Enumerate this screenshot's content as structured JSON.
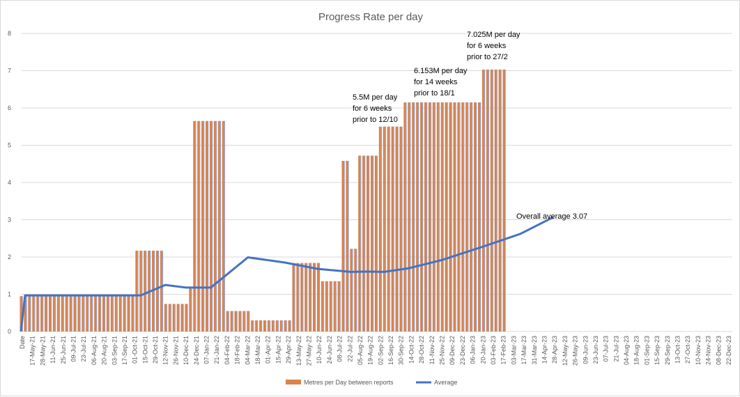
{
  "chart_data": {
    "type": "bar",
    "title": "Progress Rate per day",
    "xlabel": "",
    "ylabel": "",
    "ylim": [
      0,
      8
    ],
    "yticks": [
      "0",
      "1",
      "2",
      "3",
      "4",
      "5",
      "6",
      "7",
      "8"
    ],
    "x_labels": [
      "Date",
      "17-May-21",
      "28-May-21",
      "11-Jun-21",
      "25-Jun-21",
      "09-Jul-21",
      "23-Jul-21",
      "06-Aug-21",
      "20-Aug-21",
      "03-Sep-21",
      "17-Sep-21",
      "01-Oct-21",
      "15-Oct-21",
      "29-Oct-21",
      "12-Nov-21",
      "26-Nov-21",
      "10-Dec-21",
      "24-Dec-21",
      "07-Jan-22",
      "21-Jan-22",
      "04-Feb-22",
      "18-Feb-22",
      "04-Mar-22",
      "18-Mar-22",
      "01-Apr-22",
      "15-Apr-22",
      "29-Apr-22",
      "13-May-22",
      "27-May-22",
      "10-Jun-22",
      "24-Jun-22",
      "08-Jul-22",
      "22-Jul-22",
      "05-Aug-22",
      "19-Aug-22",
      "02-Sep-22",
      "16-Sep-22",
      "30-Sep-22",
      "14-Oct-22",
      "28-Oct-22",
      "11-Nov-22",
      "25-Nov-22",
      "09-Dec-22",
      "23-Dec-22",
      "06-Jan-23",
      "20-Jan-23",
      "03-Feb-23",
      "17-Feb-23",
      "03-Mar-23",
      "17-Mar-23",
      "31-Mar-23",
      "14-Apr-23",
      "28-Apr-23",
      "12-May-23",
      "26-May-23",
      "09-Jun-23",
      "23-Jun-23",
      "07-Jul-23",
      "21-Jul-23",
      "04-Aug-23",
      "18-Aug-23",
      "01-Sep-23",
      "15-Sep-23",
      "29-Sep-23",
      "13-Oct-23",
      "27-Oct-23",
      "10-Nov-23",
      "24-Nov-23",
      "08-Dec-23",
      "22-Dec-23"
    ],
    "series": [
      {
        "name": "Metres per Day between reports",
        "type": "bar",
        "color": "#d9824b",
        "values": [
          0.95,
          0.95,
          0.95,
          0.95,
          0.95,
          0.95,
          0.95,
          0.95,
          0.95,
          0.95,
          0.95,
          0.95,
          0.95,
          0.95,
          0.95,
          0.95,
          0.95,
          0.95,
          0.95,
          0.95,
          0.95,
          0.95,
          0.95,
          0.95,
          0.95,
          0.95,
          0.95,
          0.95,
          2.17,
          2.17,
          2.17,
          2.17,
          2.17,
          2.17,
          2.17,
          0.74,
          0.74,
          0.74,
          0.74,
          0.74,
          0.74,
          1.17,
          5.65,
          5.65,
          5.65,
          5.65,
          5.65,
          5.65,
          5.65,
          5.65,
          0.55,
          0.55,
          0.55,
          0.55,
          0.55,
          0.55,
          0.3,
          0.3,
          0.3,
          0.3,
          0.3,
          0.3,
          0.3,
          0.3,
          0.3,
          0.3,
          1.84,
          1.84,
          1.84,
          1.84,
          1.84,
          1.84,
          1.84,
          1.35,
          1.35,
          1.35,
          1.35,
          1.35,
          4.58,
          4.58,
          2.22,
          2.22,
          4.72,
          4.72,
          4.72,
          4.72,
          4.72,
          5.5,
          5.5,
          5.5,
          5.5,
          5.5,
          5.5,
          6.15,
          6.15,
          6.15,
          6.15,
          6.15,
          6.15,
          6.15,
          6.15,
          6.15,
          6.15,
          6.15,
          6.15,
          6.15,
          6.15,
          6.15,
          6.15,
          6.15,
          6.15,
          6.15,
          7.03,
          7.03,
          7.03,
          7.03,
          7.03,
          7.03
        ]
      },
      {
        "name": "Average",
        "type": "line",
        "color": "#4472c4",
        "x": [
          0,
          1,
          12,
          22,
          29,
          35,
          40,
          46,
          55,
          64,
          72,
          80,
          84,
          88,
          94,
          102,
          112,
          121,
          129
        ],
        "values": [
          0,
          0.97,
          0.97,
          0.97,
          0.97,
          1.25,
          1.18,
          1.18,
          1.99,
          1.85,
          1.68,
          1.6,
          1.61,
          1.6,
          1.7,
          1.92,
          2.28,
          2.62,
          3.07
        ]
      }
    ],
    "annotations": [
      {
        "text": [
          "5.5M per day",
          "for 6 weeks",
          "prior to 12/10"
        ]
      },
      {
        "text": [
          "6.153M per day",
          "for 14 weeks",
          "prior to 18/1"
        ]
      },
      {
        "text": [
          "7.025M per day",
          "for 6 weeks",
          "prior to 27/2"
        ]
      },
      {
        "text": [
          "Overall average 3.07"
        ]
      }
    ],
    "legend": {
      "position": "bottom",
      "items": [
        "Metres per Day between reports",
        "Average"
      ]
    },
    "grid": true
  }
}
